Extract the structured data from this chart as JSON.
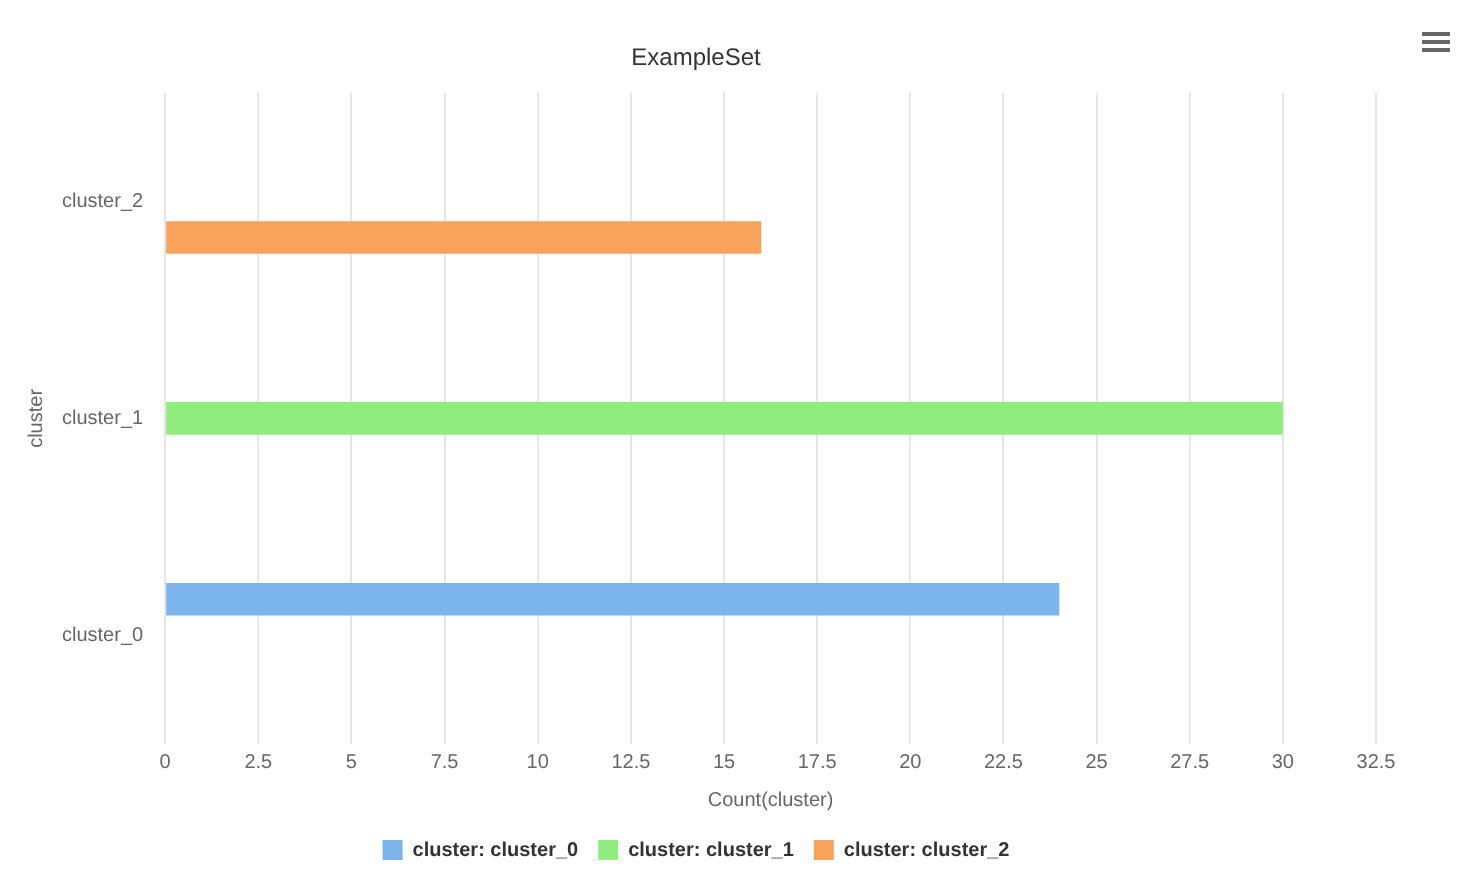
{
  "chart_data": {
    "type": "bar",
    "orientation": "horizontal",
    "title": "ExampleSet",
    "xlabel": "Count(cluster)",
    "ylabel": "cluster",
    "categories": [
      "cluster_2",
      "cluster_1",
      "cluster_0"
    ],
    "series": [
      {
        "name": "cluster: cluster_0",
        "color": "#7cb5ec",
        "values": [
          null,
          null,
          24
        ]
      },
      {
        "name": "cluster: cluster_1",
        "color": "#90ed7d",
        "values": [
          null,
          30,
          null
        ]
      },
      {
        "name": "cluster: cluster_2",
        "color": "#f7a35c",
        "values": [
          16,
          null,
          null
        ]
      }
    ],
    "xlim": [
      0,
      32.5
    ],
    "xticks": [
      0,
      2.5,
      5,
      7.5,
      10,
      12.5,
      15,
      17.5,
      20,
      22.5,
      25,
      27.5,
      30,
      32.5
    ],
    "grid": "x",
    "legend": "bottom"
  }
}
